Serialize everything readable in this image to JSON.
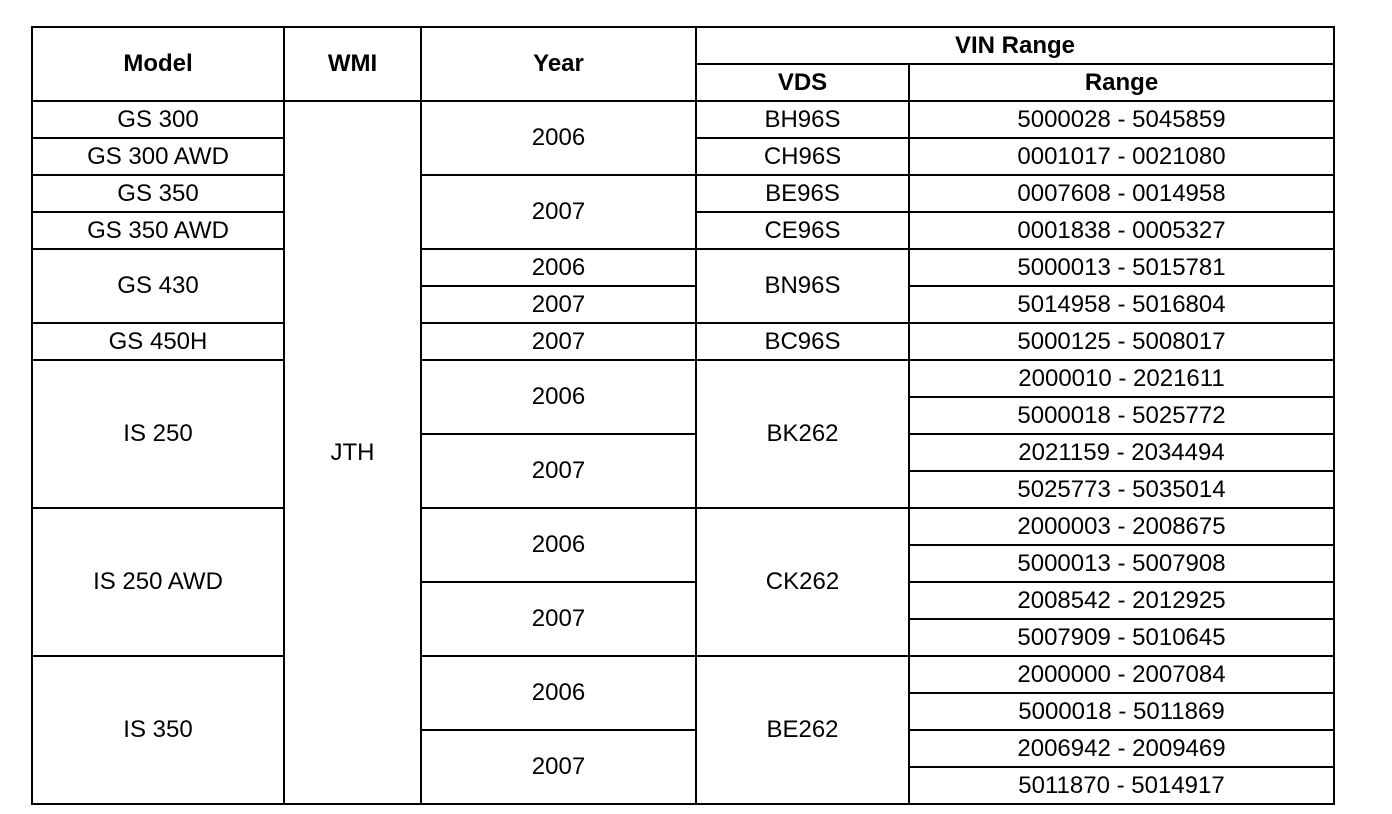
{
  "table": {
    "header": {
      "model": "Model",
      "wmi": "WMI",
      "year": "Year",
      "vin_range": "VIN Range",
      "vds": "VDS",
      "range": "Range"
    },
    "rows": [
      [
        "GS 300",
        "JTH",
        "2006",
        "BH96S",
        "5000028 - 5045859"
      ],
      [
        "GS 300 AWD",
        null,
        null,
        "CH96S",
        "0001017 - 0021080"
      ],
      [
        "GS 350",
        null,
        "2007",
        "BE96S",
        "0007608 - 0014958"
      ],
      [
        "GS 350 AWD",
        null,
        null,
        "CE96S",
        "0001838 - 0005327"
      ],
      [
        "GS 430",
        null,
        "2006",
        "BN96S",
        "5000013 - 5015781"
      ],
      [
        null,
        null,
        "2007",
        null,
        "5014958 - 5016804"
      ],
      [
        "GS 450H",
        null,
        "2007",
        "BC96S",
        "5000125 - 5008017"
      ],
      [
        "IS 250",
        null,
        "2006",
        "BK262",
        "2000010 - 2021611"
      ],
      [
        null,
        null,
        null,
        null,
        "5000018 - 5025772"
      ],
      [
        null,
        null,
        "2007",
        null,
        "2021159 - 2034494"
      ],
      [
        null,
        null,
        null,
        null,
        "5025773 - 5035014"
      ],
      [
        "IS 250 AWD",
        null,
        "2006",
        "CK262",
        "2000003 - 2008675"
      ],
      [
        null,
        null,
        null,
        null,
        "5000013 - 5007908"
      ],
      [
        null,
        null,
        "2007",
        null,
        "2008542 - 2012925"
      ],
      [
        null,
        null,
        null,
        null,
        "5007909 - 5010645"
      ],
      [
        "IS 350",
        null,
        "2006",
        "BE262",
        "2000000 - 2007084"
      ],
      [
        null,
        null,
        null,
        null,
        "5000018 - 5011869"
      ],
      [
        null,
        null,
        "2007",
        null,
        "2006942 - 2009469"
      ],
      [
        null,
        null,
        null,
        null,
        "5011870 - 5014917"
      ]
    ]
  }
}
